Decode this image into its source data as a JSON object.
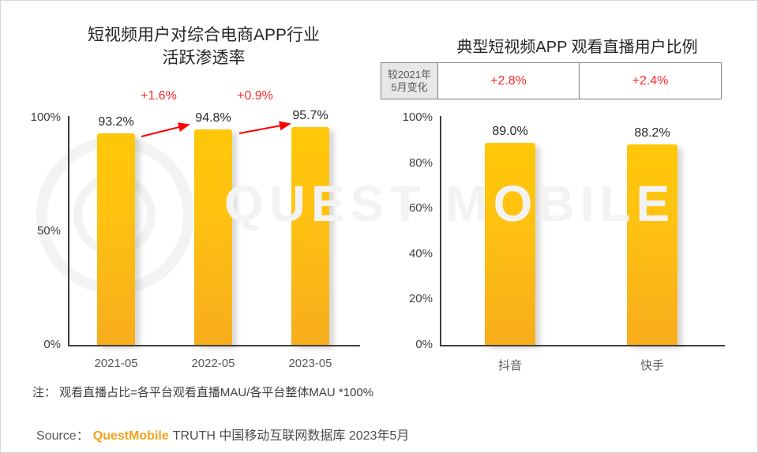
{
  "watermark": {
    "text": "QUEST MOBILE"
  },
  "colors": {
    "bar_yellow": "#FFC013",
    "accent_red": "#FB2B2B",
    "arrow_red": "#FE0000",
    "brand_orange": "#F7A11A",
    "table_header_bg": "#E7E7E7"
  },
  "right_table": {
    "header_line1": "较2021年",
    "header_line2": "5月变化",
    "cells": [
      "+2.8%",
      "+2.4%"
    ]
  },
  "note": "注： 观看直播占比=各平台观看直播MAU/各平台整体MAU *100%",
  "source": {
    "label": "Source：",
    "brand": "QuestMobile",
    "rest": "TRUTH 中国移动互联网数据库 2023年5月"
  },
  "chart_data": [
    {
      "id": "penetration",
      "type": "bar",
      "title": "短视频用户对综合电商APP行业活跃渗透率",
      "title_line1": "短视频用户对综合电商APP行业",
      "title_line2": "活跃渗透率",
      "categories": [
        "2021-05",
        "2022-05",
        "2023-05"
      ],
      "values": [
        93.2,
        94.8,
        95.7
      ],
      "value_labels": [
        "93.2%",
        "94.8%",
        "95.7%"
      ],
      "annotations": [
        "+1.6%",
        "+0.9%"
      ],
      "ylim": [
        0,
        100
      ],
      "yticks": [
        100,
        50,
        0
      ],
      "ytick_labels": [
        "100%",
        "50%",
        "0%"
      ],
      "grid": false,
      "legend": false,
      "bar_color": "#FFC013"
    },
    {
      "id": "live",
      "type": "bar",
      "title": "典型短视频APP 观看直播用户比例",
      "categories": [
        "抖音",
        "快手"
      ],
      "values": [
        89.0,
        88.2
      ],
      "value_labels": [
        "89.0%",
        "88.2%"
      ],
      "change_vs_2021_05": [
        "+2.8%",
        "+2.4%"
      ],
      "ylim": [
        0,
        100
      ],
      "yticks": [
        100,
        80,
        60,
        40,
        20,
        0
      ],
      "ytick_labels": [
        "100%",
        "80%",
        "60%",
        "40%",
        "20%",
        "0%"
      ],
      "grid": false,
      "legend": false,
      "bar_color": "#FFC013"
    }
  ]
}
